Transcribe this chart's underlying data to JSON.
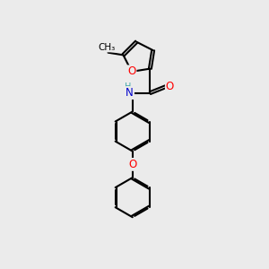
{
  "background_color": "#ebebeb",
  "bond_color": "#000000",
  "bond_width": 1.5,
  "atom_colors": {
    "O": "#ff0000",
    "N": "#0000cd",
    "C": "#000000"
  },
  "font_size": 8.5,
  "fig_width": 3.0,
  "fig_height": 3.0,
  "dpi": 100
}
